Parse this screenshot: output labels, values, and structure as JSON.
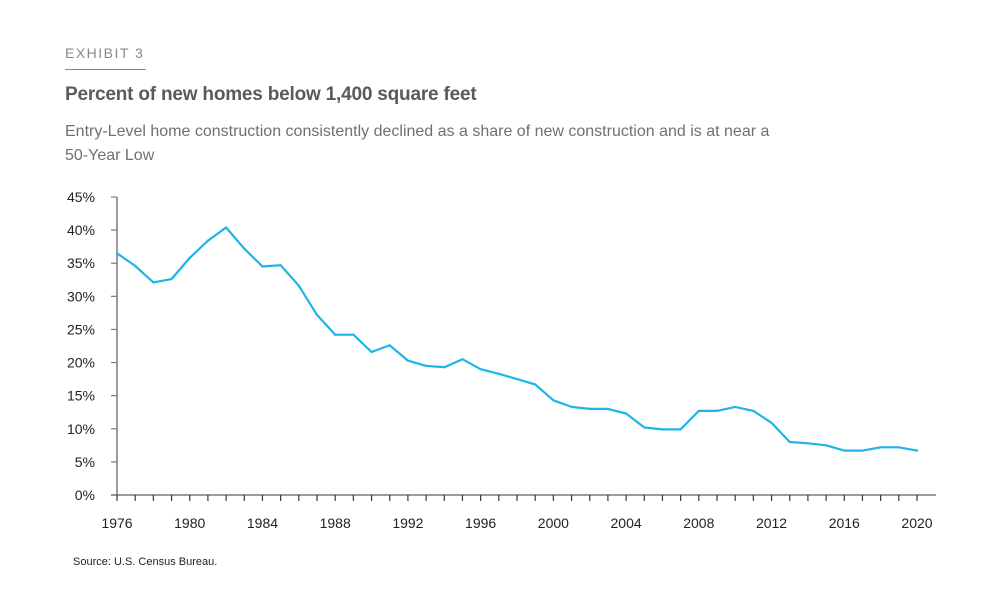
{
  "header": {
    "exhibit": "EXHIBIT 3",
    "title": "Percent of new homes below 1,400 square feet",
    "subtitle": "Entry-Level home construction consistently declined as a share of new construction and is at near a 50-Year Low"
  },
  "footer": {
    "source": "Source: U.S. Census Bureau."
  },
  "colors": {
    "line": "#1eb4e6",
    "axis": "#7a7a7a"
  },
  "chart_data": {
    "type": "line",
    "title": "Percent of new homes below 1,400 square feet",
    "xlabel": "",
    "ylabel": "",
    "xlim": [
      1976,
      2020
    ],
    "ylim": [
      0,
      45
    ],
    "grid": false,
    "y_ticks": [
      "0%",
      "5%",
      "10%",
      "15%",
      "20%",
      "25%",
      "30%",
      "35%",
      "40%",
      "45%"
    ],
    "y_tick_values": [
      0,
      5,
      10,
      15,
      20,
      25,
      30,
      35,
      40,
      45
    ],
    "x_ticks": [
      "1976",
      "1980",
      "1984",
      "1988",
      "1992",
      "1996",
      "2000",
      "2004",
      "2008",
      "2012",
      "2016",
      "2020"
    ],
    "x_tick_values": [
      1976,
      1980,
      1984,
      1988,
      1992,
      1996,
      2000,
      2004,
      2008,
      2012,
      2016,
      2020
    ],
    "series": [
      {
        "name": "Percent of new homes below 1,400 square feet",
        "x": [
          1976,
          1977,
          1978,
          1979,
          1980,
          1981,
          1982,
          1983,
          1984,
          1985,
          1986,
          1987,
          1988,
          1989,
          1990,
          1991,
          1992,
          1993,
          1994,
          1995,
          1996,
          1997,
          1998,
          1999,
          2000,
          2001,
          2002,
          2003,
          2004,
          2005,
          2006,
          2007,
          2008,
          2009,
          2010,
          2011,
          2012,
          2013,
          2014,
          2015,
          2016,
          2017,
          2018,
          2019,
          2020
        ],
        "values": [
          36.5,
          34.6,
          32.1,
          32.6,
          35.8,
          38.4,
          40.4,
          37.2,
          34.5,
          34.7,
          31.6,
          27.2,
          24.2,
          24.2,
          21.6,
          22.6,
          20.3,
          19.5,
          19.3,
          20.5,
          19.0,
          18.3,
          17.5,
          16.7,
          14.3,
          13.3,
          13.0,
          13.0,
          12.3,
          10.2,
          9.9,
          9.9,
          12.7,
          12.7,
          13.3,
          12.7,
          10.9,
          8.0,
          7.8,
          7.5,
          6.7,
          6.7,
          7.2,
          7.2,
          6.7
        ]
      }
    ]
  }
}
